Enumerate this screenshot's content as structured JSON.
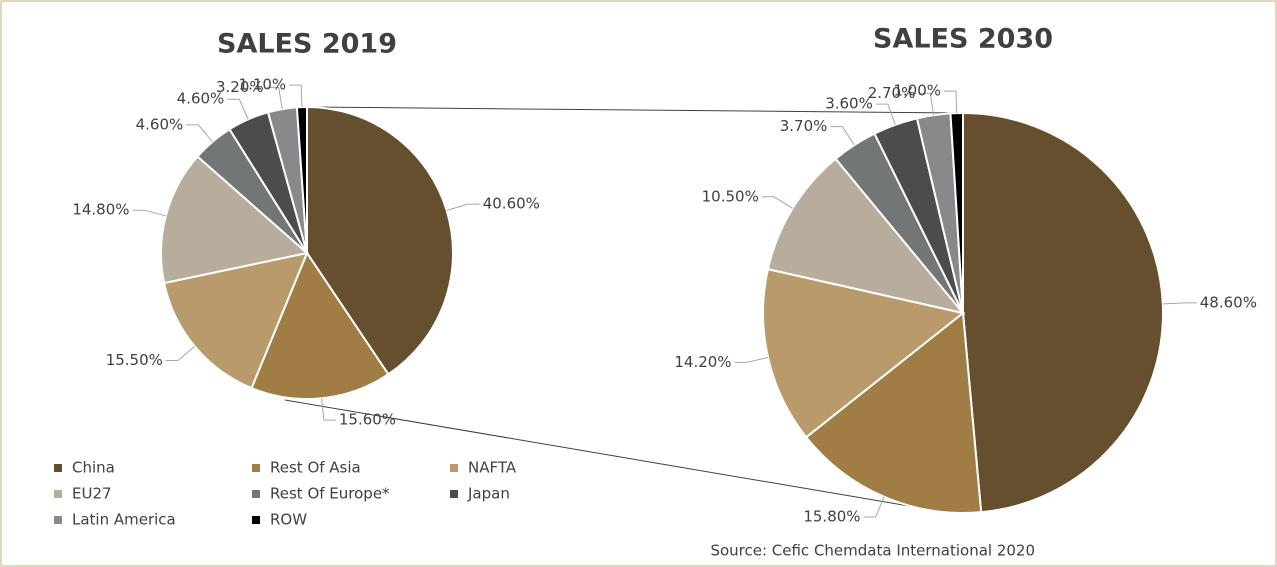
{
  "chart_data": [
    {
      "type": "pie",
      "title": "SALES 2019",
      "categories": [
        "China",
        "Rest Of Asia",
        "NAFTA",
        "EU27",
        "Rest Of Europe*",
        "Japan",
        "Latin America",
        "ROW"
      ],
      "values": [
        40.6,
        15.6,
        15.5,
        14.8,
        4.6,
        4.6,
        3.2,
        1.1
      ],
      "value_labels": [
        "40.60%",
        "15.60%",
        "15.50%",
        "14.80%",
        "4.60%",
        "4.60%",
        "3.20%",
        "1.10%"
      ],
      "colors": [
        "#654f2f",
        "#a07d45",
        "#b99a6a",
        "#b8ad9d",
        "#737677",
        "#4a4c4d",
        "#87898a",
        "#000000"
      ]
    },
    {
      "type": "pie",
      "title": "SALES 2030",
      "categories": [
        "China",
        "Rest Of Asia",
        "NAFTA",
        "EU27",
        "Rest Of Europe*",
        "Japan",
        "Latin America",
        "ROW"
      ],
      "values": [
        48.6,
        15.8,
        14.2,
        10.5,
        3.7,
        3.6,
        2.7,
        1.0
      ],
      "value_labels": [
        "48.60%",
        "15.80%",
        "14.20%",
        "10.50%",
        "3.70%",
        "3.60%",
        "2.70%",
        "1.00%"
      ],
      "colors": [
        "#654f2f",
        "#a07d45",
        "#b99a6a",
        "#b8ad9d",
        "#737677",
        "#4a4c4d",
        "#87898a",
        "#000000"
      ]
    }
  ],
  "source": "Source: Cefic Chemdata International 2020"
}
